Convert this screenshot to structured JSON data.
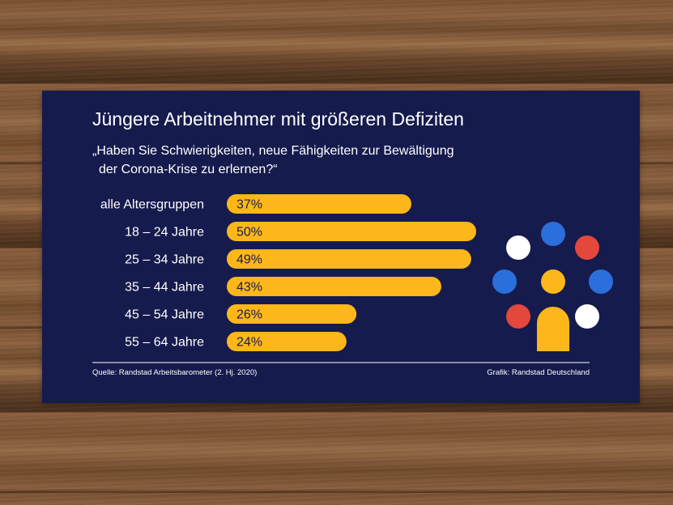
{
  "title": "Jüngere Arbeitnehmer mit größeren Defiziten",
  "subtitle_lines": [
    "„Haben Sie Schwierigkeiten, neue Fähigkeiten zur Bewältigung",
    "der Corona-Krise zu erlernen?“"
  ],
  "source": "Quelle: Randstad Arbeitsbarometer (2. Hj. 2020)",
  "credit": "Grafik: Randstad Deutschland",
  "colors": {
    "background": "#161b4d",
    "bar": "#fdb71a",
    "text": "#ffffff",
    "bar_label": "#161b4d",
    "logo_blue": "#2a6fdb",
    "logo_red": "#e4473c",
    "logo_white": "#ffffff",
    "logo_yellow": "#fdb71a"
  },
  "logo_icon": "randstad-logo-icon",
  "chart_data": {
    "type": "bar",
    "orientation": "horizontal",
    "categories": [
      "alle Altersgruppen",
      "18 – 24 Jahre",
      "25 – 34 Jahre",
      "35 – 44 Jahre",
      "45 – 54 Jahre",
      "55 – 64 Jahre"
    ],
    "values": [
      37,
      50,
      49,
      43,
      26,
      24
    ],
    "value_labels": [
      "37%",
      "50%",
      "49%",
      "43%",
      "26%",
      "24%"
    ],
    "unit": "%",
    "xlim": [
      0,
      50
    ],
    "grid": false,
    "legend": "none"
  }
}
